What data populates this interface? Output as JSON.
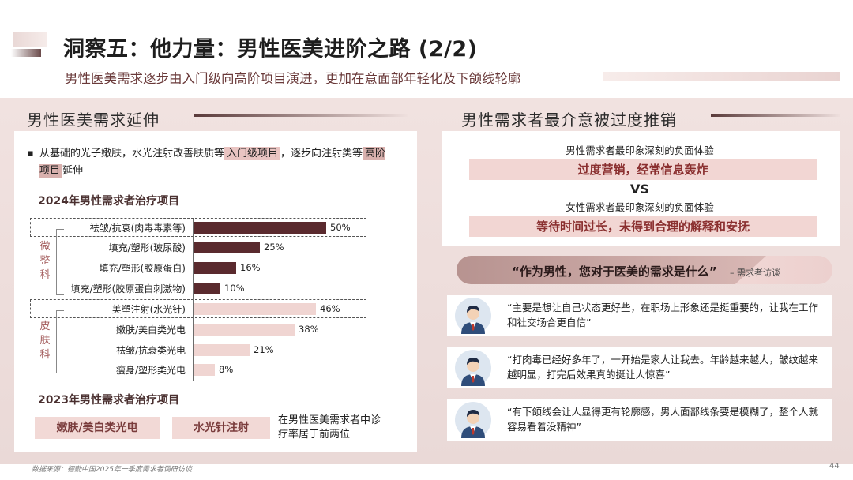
{
  "header": {
    "title": "洞察五：他力量：男性医美进阶之路 (2/2)",
    "subtitle": "男性医美需求逐步由入门级向高阶项目演进，更加在意面部年轻化及下颌线轮廓"
  },
  "left_panel": {
    "heading": "男性医美需求延伸",
    "bullet": {
      "part1": "从基础的光子嫩肤，水光注射改善肤质等",
      "hl1": "入门级项目",
      "part2": "，逐步向注射类等",
      "hl2": "高阶项目",
      "part3": "延伸"
    },
    "chart_title": "2024年男性需求者治疗项目",
    "group_micro": "微整科",
    "group_skin": "皮肤科",
    "title_2023": "2023年男性需求者治疗项目",
    "pill1": "嫩肤/美白类光电",
    "pill2": "水光针注射",
    "note": "在男性医美需求者中诊疗率居于前两位"
  },
  "chart_data": {
    "type": "bar",
    "title": "2024年男性需求者治疗项目",
    "categories": [
      "祛皱/抗衰(肉毒毒素等)",
      "填充/塑形(玻尿酸)",
      "填充/塑形(胶原蛋白)",
      "填充/塑形(胶原蛋白刺激物)",
      "美塑注射(水光针)",
      "嫩肤/美白类光电",
      "祛皱/抗衰类光电",
      "瘦身/塑形类光电"
    ],
    "values": [
      50,
      25,
      16,
      10,
      46,
      38,
      21,
      8
    ],
    "value_labels": [
      "50%",
      "25%",
      "16%",
      "10%",
      "46%",
      "38%",
      "21%",
      "8%"
    ],
    "groups": [
      {
        "name": "微整科",
        "count": 4
      },
      {
        "name": "皮肤科",
        "count": 4
      }
    ],
    "colors": {
      "micro": "#5a2a2e",
      "skin": "#f0d5d2"
    },
    "xlim": [
      0,
      100
    ]
  },
  "right_panel": {
    "heading": "男性需求者最介意被过度推销",
    "male_label": "男性需求者最印象深刻的负面体验",
    "male_band": "过度营销，经常信息轰炸",
    "vs": "VS",
    "female_label": "女性需求者最印象深刻的负面体验",
    "female_band": "等待时间过长，未得到合理的解释和安抚",
    "quote_question": "“作为男性，您对于医美的需求是什么”",
    "quote_source": "– 需求者访谈",
    "quotes": [
      "“主要是想让自己状态更好些，在职场上形象还是挺重要的，让我在工作和社交场合更自信”",
      "“打肉毒已经好多年了，一开始是家人让我去。年龄越来越大，皱纹越来越明显，打完后效果真的挺让人惊喜”",
      "“有下颌线会让人显得更有轮廓感，男人面部线条要是模糊了，整个人就容易看着没精神”"
    ]
  },
  "footer": {
    "source": "数据来源：德勤中国2025年一季度需求者调研访谈",
    "page": "44"
  }
}
